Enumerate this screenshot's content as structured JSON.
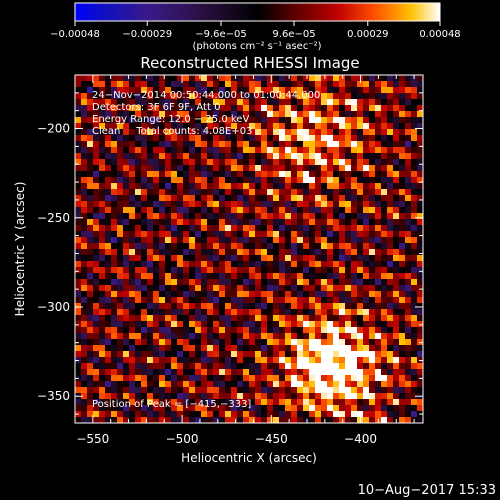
{
  "chart_data": {
    "type": "heatmap",
    "title": "Reconstructed RHESSI Image",
    "xlabel": "Heliocentric X (arcsec)",
    "ylabel": "Heliocentric Y (arcsec)",
    "xlim": [
      -560,
      -365
    ],
    "ylim": [
      -365,
      -170
    ],
    "x_ticks": [
      -550,
      -500,
      -450,
      -400
    ],
    "y_ticks": [
      -350,
      -300,
      -250,
      -200
    ],
    "x_tick_labels": [
      "−550",
      "−500",
      "−450",
      "−400"
    ],
    "y_tick_labels": [
      "−350",
      "−300",
      "−250",
      "−200"
    ],
    "colorbar": {
      "range": [
        -0.00048,
        0.00048
      ],
      "ticks": [
        -0.00048,
        -0.00029,
        -9.6e-05,
        9.6e-05,
        0.00029,
        0.00048
      ],
      "tick_labels": [
        "−0.00048",
        "−0.00029",
        "−9.6e−05",
        "9.6e−05",
        "0.00029",
        "0.00048"
      ],
      "unit_label": "(photons cm⁻² s⁻¹ asec⁻²)"
    },
    "annotations": [
      "24−Nov−2014 00:50:44.000 to 01:00:44.000",
      "Detectors: 3F 6F 9F, Att 0",
      "Energy Range: 12.0 − 25.0 keV",
      "Clean     Total counts: 4.08E+03"
    ],
    "peak_label": "Position of Peak = [−415,−333]",
    "peak": [
      -415,
      -333
    ],
    "grid": false,
    "legend": "colorbar-top"
  },
  "footer": {
    "timestamp": "10−Aug−2017 15:33"
  }
}
